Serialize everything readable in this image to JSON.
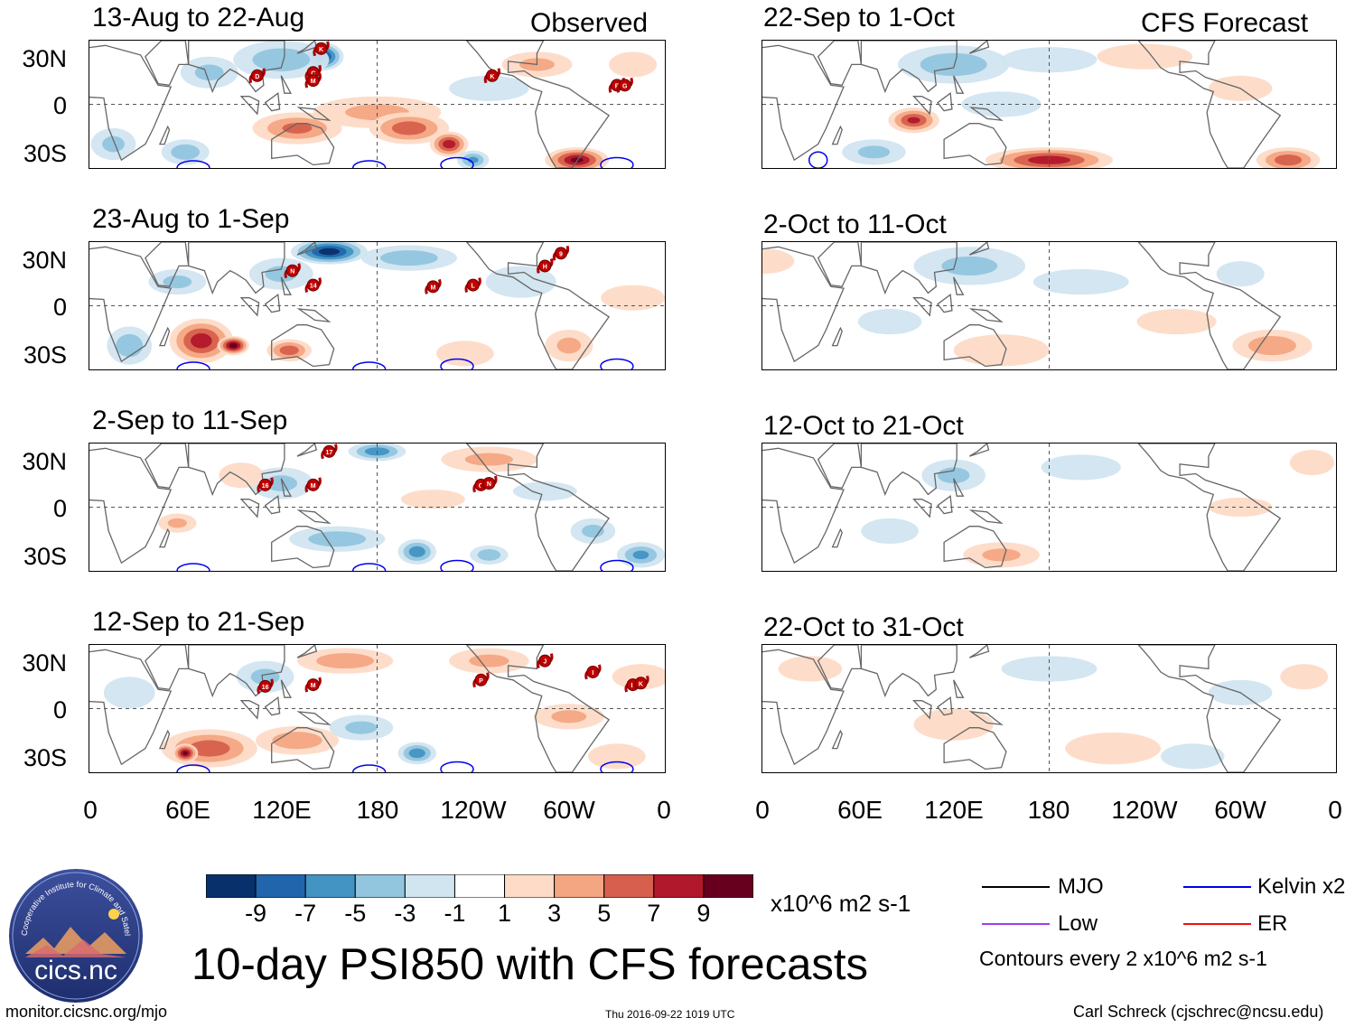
{
  "headers": {
    "observed": "Observed",
    "forecast": "CFS Forecast"
  },
  "panels_observed": [
    {
      "title": "13-Aug to 22-Aug"
    },
    {
      "title": "23-Aug to 1-Sep"
    },
    {
      "title": "2-Sep to 11-Sep"
    },
    {
      "title": "12-Sep to 21-Sep"
    }
  ],
  "panels_forecast": [
    {
      "title": "22-Sep to 1-Oct"
    },
    {
      "title": "2-Oct to 11-Oct"
    },
    {
      "title": "12-Oct to 21-Oct"
    },
    {
      "title": "22-Oct to 31-Oct"
    }
  ],
  "lat_labels": [
    "30N",
    "0",
    "30S"
  ],
  "lon_labels": [
    "0",
    "60E",
    "120E",
    "180",
    "120W",
    "60W",
    "0"
  ],
  "chart_data": {
    "type": "heatmap",
    "title": "10-day PSI850 with CFS forecasts",
    "variable": "PSI850",
    "x_axis": {
      "range": [
        0,
        360
      ],
      "ticks": [
        "0",
        "60E",
        "120E",
        "180",
        "120W",
        "60W",
        "0"
      ]
    },
    "y_axis": {
      "range": [
        -40,
        40
      ],
      "ticks": [
        "30N",
        "0",
        "30S"
      ]
    },
    "colorbar": {
      "labels": [
        "-9",
        "-7",
        "-5",
        "-3",
        "-1",
        "1",
        "3",
        "5",
        "7",
        "9"
      ],
      "levels": [
        -9,
        -7,
        -5,
        -3,
        -1,
        1,
        3,
        5,
        7,
        9
      ],
      "colors": [
        "#08306b",
        "#2166ac",
        "#4393c3",
        "#92c5de",
        "#d1e5f0",
        "#ffffff",
        "#fddbc7",
        "#f4a582",
        "#d6604d",
        "#b2182b",
        "#67001f"
      ],
      "units": "x10^6 m2 s-1"
    },
    "contour_note": "Contours every 2 x10^6 m2 s-1",
    "legend": [
      {
        "label": "MJO",
        "color": "#000000"
      },
      {
        "label": "Kelvin x2",
        "color": "#0000ee"
      },
      {
        "label": "Low",
        "color": "#a040e0"
      },
      {
        "label": "ER",
        "color": "#ee1111"
      }
    ],
    "storm_markers": {
      "panel_1": [
        "D",
        "K",
        "C",
        "M",
        "K",
        "F",
        "G"
      ],
      "panel_2": [
        "N",
        "14",
        "M",
        "L",
        "H",
        "9"
      ],
      "panel_3": [
        "17",
        "16",
        "M",
        "O",
        "N"
      ],
      "panel_4": [
        "16",
        "M",
        "P",
        "J",
        "I",
        "L",
        "K"
      ]
    }
  },
  "footer": {
    "logo_text": "cics.nc",
    "logo_ring": "Cooperative Institute for Climate and Satellites",
    "url": "monitor.cicsnc.org/mjo",
    "timestamp": "Thu 2016-09-22 1019 UTC",
    "author": "Carl Schreck (cjschrec@ncsu.edu)"
  }
}
